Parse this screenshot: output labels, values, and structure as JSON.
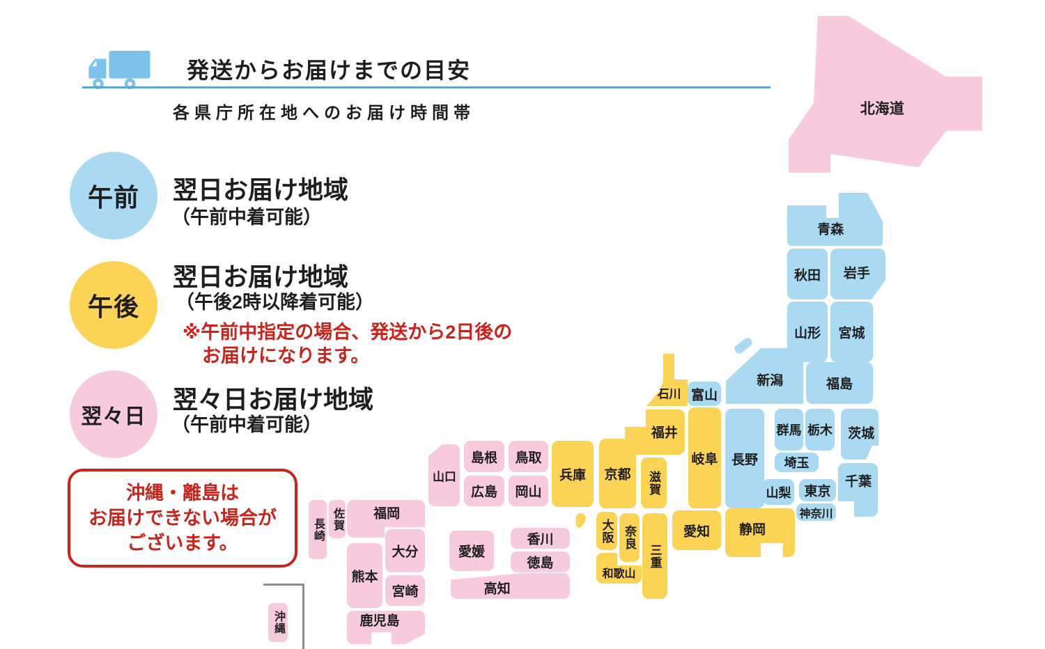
{
  "header": {
    "title": "発送からお届けまでの目安",
    "subtitle": "各県庁所在地へのお届け時間帯"
  },
  "legend": {
    "items": [
      {
        "badge": "午前",
        "category": "morning",
        "title": "翌日お届け地域",
        "condition": "（午前中着可能）",
        "notes": []
      },
      {
        "badge": "午後",
        "category": "afternoon",
        "title": "翌日お届け地域",
        "condition": "（午後2時以降着可能）",
        "notes": [
          "※午前中指定の場合、発送から2日後の",
          "お届けになります。"
        ]
      },
      {
        "badge": "翌々日",
        "category": "two_days_later",
        "title": "翌々日お届け地域",
        "condition": "（午前中着可能）",
        "notes": []
      }
    ]
  },
  "notice": {
    "lines": [
      "沖縄・離島は",
      "お届けできない場合が",
      "ございます。"
    ]
  },
  "colors": {
    "morning_blue": "#AADAF2",
    "afternoon_yellow": "#FBD456",
    "two_days_pink": "#F7CBDD",
    "note_red": "#C9241C",
    "rule_blue": "#58A8DA",
    "truck_blue": "#7CC3EA"
  },
  "map": {
    "prefectures": [
      {
        "id": "hokkaido",
        "label": "北海道",
        "category": "two_days_later"
      },
      {
        "id": "aomori",
        "label": "青森",
        "category": "morning"
      },
      {
        "id": "akita",
        "label": "秋田",
        "category": "morning"
      },
      {
        "id": "iwate",
        "label": "岩手",
        "category": "morning"
      },
      {
        "id": "yamagata",
        "label": "山形",
        "category": "morning"
      },
      {
        "id": "miyagi",
        "label": "宮城",
        "category": "morning"
      },
      {
        "id": "sado",
        "label": "",
        "category": "morning"
      },
      {
        "id": "niigata",
        "label": "新潟",
        "category": "morning"
      },
      {
        "id": "fukushima",
        "label": "福島",
        "category": "morning"
      },
      {
        "id": "nagano",
        "label": "長野",
        "category": "morning"
      },
      {
        "id": "gunma",
        "label": "群馬",
        "category": "morning"
      },
      {
        "id": "tochigi",
        "label": "栃木",
        "category": "morning"
      },
      {
        "id": "ibaraki",
        "label": "茨城",
        "category": "morning"
      },
      {
        "id": "saitama",
        "label": "埼玉",
        "category": "morning"
      },
      {
        "id": "yamanashi",
        "label": "山梨",
        "category": "morning"
      },
      {
        "id": "tokyo",
        "label": "東京",
        "category": "morning"
      },
      {
        "id": "chiba",
        "label": "千葉",
        "category": "morning"
      },
      {
        "id": "kanagawa",
        "label": "神奈川",
        "category": "morning"
      },
      {
        "id": "toyama",
        "label": "富山",
        "category": "morning"
      },
      {
        "id": "ishikawa",
        "label": "石川",
        "category": "afternoon"
      },
      {
        "id": "fukui",
        "label": "福井",
        "category": "afternoon"
      },
      {
        "id": "gifu",
        "label": "岐阜",
        "category": "afternoon"
      },
      {
        "id": "shiga",
        "label": "滋賀",
        "category": "afternoon"
      },
      {
        "id": "kyoto",
        "label": "京都",
        "category": "afternoon"
      },
      {
        "id": "hyogo",
        "label": "兵庫",
        "category": "afternoon"
      },
      {
        "id": "awaji",
        "label": "",
        "category": "afternoon"
      },
      {
        "id": "osaka",
        "label": "大阪",
        "category": "afternoon"
      },
      {
        "id": "nara",
        "label": "奈良",
        "category": "afternoon"
      },
      {
        "id": "wakayama",
        "label": "和歌山",
        "category": "afternoon"
      },
      {
        "id": "mie",
        "label": "三重",
        "category": "afternoon"
      },
      {
        "id": "aichi",
        "label": "愛知",
        "category": "afternoon"
      },
      {
        "id": "shizuoka",
        "label": "静岡",
        "category": "afternoon"
      },
      {
        "id": "yamaguchi",
        "label": "山口",
        "category": "two_days_later"
      },
      {
        "id": "shimane",
        "label": "島根",
        "category": "two_days_later"
      },
      {
        "id": "tottori",
        "label": "鳥取",
        "category": "two_days_later"
      },
      {
        "id": "hiroshima",
        "label": "広島",
        "category": "two_days_later"
      },
      {
        "id": "okayama",
        "label": "岡山",
        "category": "two_days_later"
      },
      {
        "id": "ehime",
        "label": "愛媛",
        "category": "two_days_later"
      },
      {
        "id": "kagawa",
        "label": "香川",
        "category": "two_days_later"
      },
      {
        "id": "tokushima",
        "label": "徳島",
        "category": "two_days_later"
      },
      {
        "id": "kochi",
        "label": "高知",
        "category": "two_days_later"
      },
      {
        "id": "nagasaki",
        "label": "長崎",
        "category": "two_days_later"
      },
      {
        "id": "saga",
        "label": "佐賀",
        "category": "two_days_later"
      },
      {
        "id": "fukuoka",
        "label": "福岡",
        "category": "two_days_later"
      },
      {
        "id": "oita",
        "label": "大分",
        "category": "two_days_later"
      },
      {
        "id": "kumamoto",
        "label": "熊本",
        "category": "two_days_later"
      },
      {
        "id": "miyazaki",
        "label": "宮崎",
        "category": "two_days_later"
      },
      {
        "id": "kagoshima",
        "label": "鹿児島",
        "category": "two_days_later"
      },
      {
        "id": "okinawa",
        "label": "沖縄",
        "category": "two_days_later"
      }
    ]
  }
}
